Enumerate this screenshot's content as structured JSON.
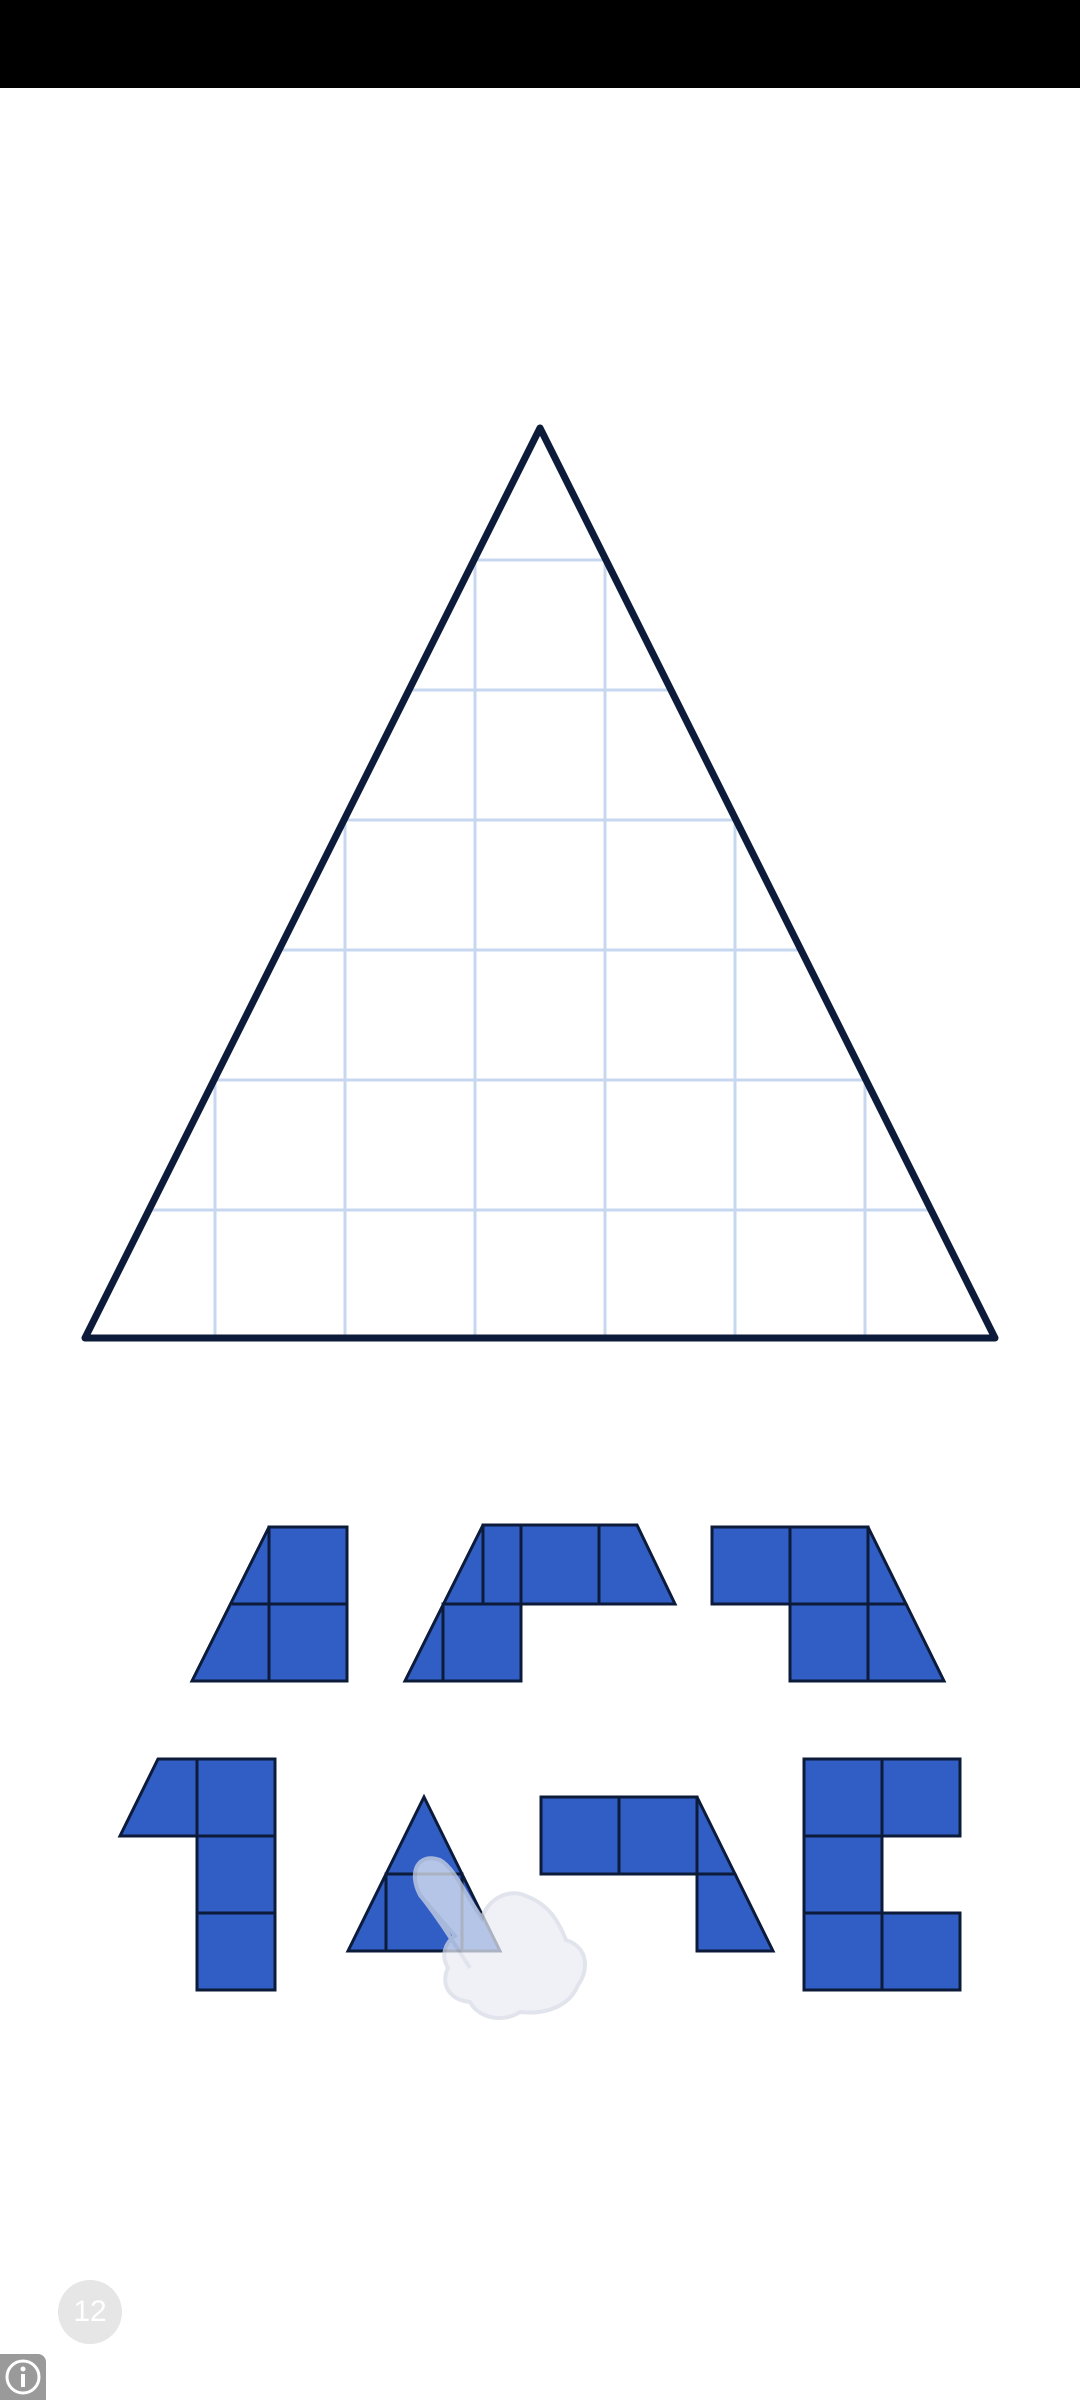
{
  "status_bar": {
    "color": "#000000"
  },
  "puzzle": {
    "outline_color": "#0d1b3a",
    "grid_color": "#c8d7f0",
    "piece_color": "#315ec4",
    "piece_border_color": "#0d1b3a"
  },
  "pieces": [
    {
      "name": "piece-1"
    },
    {
      "name": "piece-2"
    },
    {
      "name": "piece-3"
    },
    {
      "name": "piece-4"
    },
    {
      "name": "piece-5"
    },
    {
      "name": "piece-6"
    },
    {
      "name": "piece-7"
    }
  ],
  "hint": {
    "icon": "hand-pointer-icon"
  },
  "level": {
    "number": "12"
  },
  "info": {
    "icon": "info-icon"
  }
}
